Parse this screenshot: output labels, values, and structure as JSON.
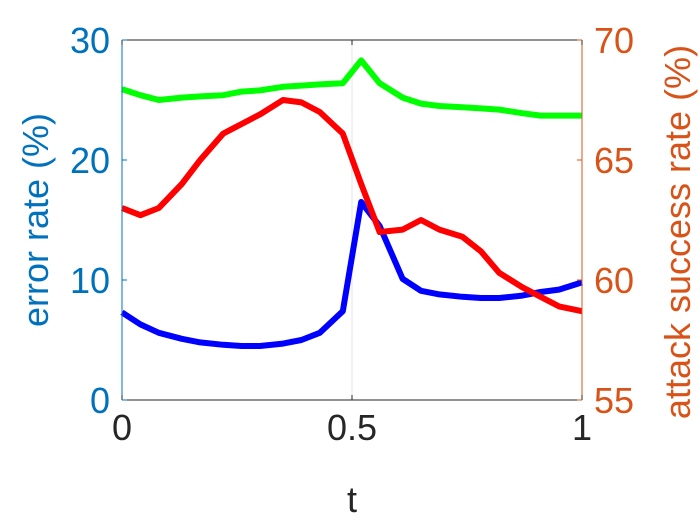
{
  "chart_data": {
    "type": "line",
    "xlabel": "t",
    "ylabel_left": "error rate (%)",
    "ylabel_right": "attack success rate (%)",
    "xlim": [
      0,
      1
    ],
    "ylim_left": [
      0,
      30
    ],
    "ylim_right": [
      55,
      70
    ],
    "x_ticks": [
      0,
      0.5,
      1
    ],
    "x_tick_labels": [
      "0",
      "0.5",
      "1"
    ],
    "y_left_ticks": [
      0,
      10,
      20,
      30
    ],
    "y_left_tick_labels": [
      "0",
      "10",
      "20",
      "30"
    ],
    "y_right_ticks": [
      55,
      60,
      65,
      70
    ],
    "y_right_tick_labels": [
      "55",
      "60",
      "65",
      "70"
    ],
    "grid": false,
    "colors": {
      "left_axis": "#0072BD",
      "right_axis": "#D95319",
      "blue_series": "#0000ff",
      "red_series": "#ff0000",
      "green_series": "#00ff00"
    },
    "x": [
      0,
      0.04,
      0.08,
      0.13,
      0.17,
      0.22,
      0.26,
      0.3,
      0.35,
      0.39,
      0.43,
      0.48,
      0.52,
      0.56,
      0.61,
      0.65,
      0.69,
      0.74,
      0.78,
      0.82,
      0.87,
      0.91,
      0.95,
      1
    ],
    "series": [
      {
        "axis": "left",
        "color": "#0000ff",
        "values": [
          7.3,
          6.3,
          5.6,
          5.1,
          4.8,
          4.6,
          4.5,
          4.5,
          4.7,
          5.0,
          5.6,
          7.4,
          16.5,
          14.5,
          10.1,
          9.1,
          8.8,
          8.6,
          8.5,
          8.5,
          8.7,
          9.0,
          9.2,
          9.8
        ]
      },
      {
        "axis": "right",
        "color": "#ff0000",
        "values": [
          63.0,
          62.7,
          63.0,
          64.0,
          65.0,
          66.1,
          66.5,
          66.9,
          67.5,
          67.4,
          67.0,
          66.1,
          64.0,
          62.0,
          62.1,
          62.5,
          62.1,
          61.8,
          61.2,
          60.3,
          59.7,
          59.3,
          58.9,
          58.7
        ]
      },
      {
        "axis": "left",
        "color": "#00ff00",
        "values": [
          25.9,
          25.4,
          25.0,
          25.2,
          25.3,
          25.4,
          25.7,
          25.8,
          26.1,
          26.2,
          26.3,
          26.4,
          28.3,
          26.4,
          25.2,
          24.7,
          24.5,
          24.4,
          24.3,
          24.2,
          23.9,
          23.7,
          23.7,
          23.7
        ]
      }
    ]
  }
}
